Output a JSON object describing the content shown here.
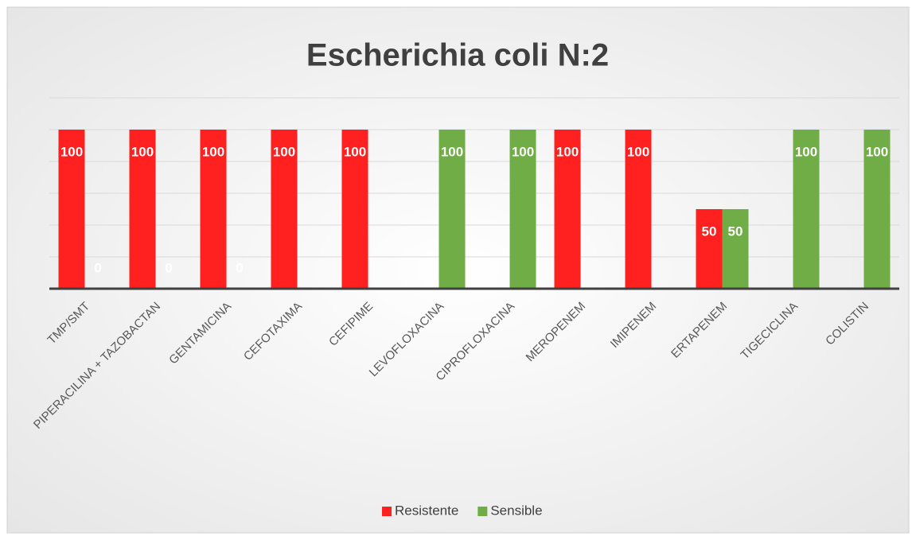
{
  "chart_data": {
    "type": "bar",
    "title": "Escherichia coli N:2",
    "categories": [
      "TMP/SMT",
      "PIPERACILINA + TAZOBACTAN",
      "GENTAMICINA",
      "CEFOTAXIMA",
      "CEFIPIME",
      "LEVOFLOXACINA",
      "CIPROFLOXACINA",
      "MEROPENEM",
      "IMIPENEM",
      "ERTAPENEM",
      "TIGECICLINA",
      "COLISTIN"
    ],
    "series": [
      {
        "name": "Resistente",
        "color": "#ff2020",
        "values": [
          100,
          100,
          100,
          100,
          100,
          null,
          null,
          100,
          100,
          50,
          null,
          null
        ]
      },
      {
        "name": "Sensible",
        "color": "#70ad47",
        "values": [
          0,
          0,
          0,
          null,
          null,
          100,
          100,
          null,
          null,
          50,
          100,
          100
        ]
      }
    ],
    "ylim": [
      0,
      120
    ],
    "yticks": [
      0,
      20,
      40,
      60,
      80,
      100,
      120
    ],
    "grid": true,
    "legend": "bottom"
  }
}
